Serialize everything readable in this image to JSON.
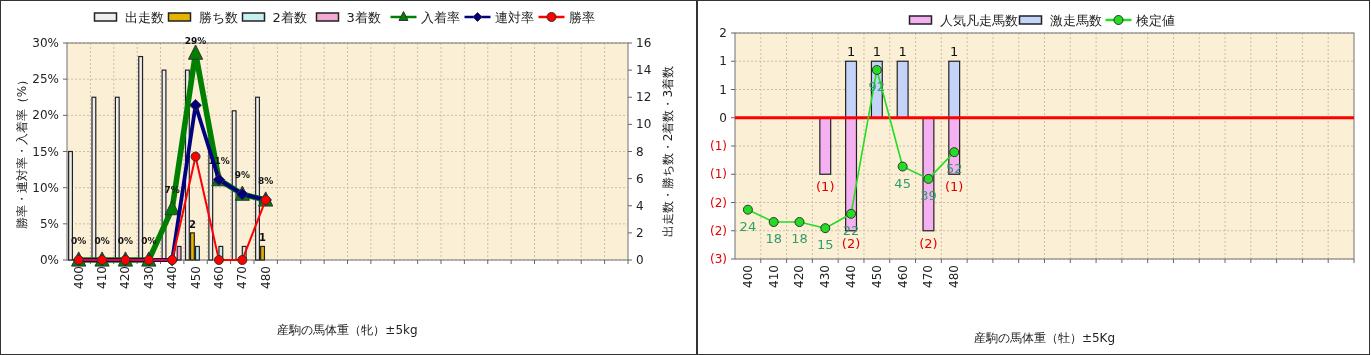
{
  "chart_data": [
    {
      "type": "bar",
      "xlabel": "産駒の馬体重（牝）±5kg",
      "ylabel": "勝率・連対率・入着率（%）",
      "y2label": "出走数・勝ち数・2着数・3着数",
      "grid": true,
      "legend": "top",
      "categories": [
        "400",
        "410",
        "420",
        "430",
        "440",
        "450",
        "460",
        "470",
        "480",
        null,
        null,
        null,
        null,
        null,
        null,
        null,
        null,
        null,
        null,
        null,
        null,
        null,
        null,
        null
      ],
      "ylim": [
        0,
        30
      ],
      "yticks": [
        {
          "value": 0,
          "label": "0%"
        },
        {
          "value": 5,
          "label": "5%"
        },
        {
          "value": 10,
          "label": "10%"
        },
        {
          "value": 15,
          "label": "15%"
        },
        {
          "value": 20,
          "label": "20%"
        },
        {
          "value": 25,
          "label": "25%"
        },
        {
          "value": 30,
          "label": "30%"
        }
      ],
      "y2lim": [
        0,
        16
      ],
      "y2ticks": [
        0,
        2,
        4,
        6,
        8,
        10,
        12,
        14,
        16
      ],
      "series": [
        {
          "name": "出走数",
          "type": "bar",
          "axis": "y2",
          "color": "#eeeeee",
          "values": [
            8,
            12,
            12,
            15,
            14,
            14,
            9,
            11,
            12,
            null,
            null,
            null,
            null,
            null,
            null,
            null,
            null,
            null,
            null,
            null,
            null,
            null,
            null,
            null
          ]
        },
        {
          "name": "勝ち数",
          "type": "bar",
          "axis": "y2",
          "color": "#e6b400",
          "values": [
            0,
            0,
            0,
            0,
            0,
            2,
            0,
            0,
            1,
            null,
            null,
            null,
            null,
            null,
            null,
            null,
            null,
            null,
            null,
            null,
            null,
            null,
            null,
            null
          ],
          "value_labels": [
            null,
            null,
            null,
            null,
            null,
            "2",
            null,
            null,
            "1",
            null,
            null,
            null,
            null,
            null,
            null,
            null,
            null,
            null,
            null,
            null,
            null,
            null,
            null,
            null
          ]
        },
        {
          "name": "2着数",
          "type": "bar",
          "axis": "y2",
          "color": "#c4f0f0",
          "values": [
            0,
            0,
            0,
            0,
            0,
            1,
            1,
            1,
            0,
            null,
            null,
            null,
            null,
            null,
            null,
            null,
            null,
            null,
            null,
            null,
            null,
            null,
            null,
            null
          ]
        },
        {
          "name": "3着数",
          "type": "bar",
          "axis": "y2",
          "color": "#f4a8d4",
          "values": [
            0,
            0,
            0,
            0,
            1,
            0,
            0,
            0,
            0,
            null,
            null,
            null,
            null,
            null,
            null,
            null,
            null,
            null,
            null,
            null,
            null,
            null,
            null,
            null
          ]
        },
        {
          "name": "入着率",
          "type": "line",
          "axis": "y",
          "color": "#008000",
          "marker": "triangle",
          "values": [
            0,
            0,
            0,
            0,
            7.1,
            28.6,
            11.1,
            9.1,
            8.3,
            null,
            null,
            null,
            null,
            null,
            null,
            null,
            null,
            null,
            null,
            null,
            null,
            null,
            null,
            null
          ],
          "value_labels": [
            "0%",
            "0%",
            "0%",
            "0%",
            "7%",
            "29%",
            "11%",
            "9%",
            "8%",
            null,
            null,
            null,
            null,
            null,
            null,
            null,
            null,
            null,
            null,
            null,
            null,
            null,
            null,
            null
          ]
        },
        {
          "name": "連対率",
          "type": "line",
          "axis": "y",
          "color": "#000080",
          "marker": "diamond",
          "values": [
            0,
            0,
            0,
            0,
            0,
            21.4,
            11.1,
            9.1,
            8.3,
            null,
            null,
            null,
            null,
            null,
            null,
            null,
            null,
            null,
            null,
            null,
            null,
            null,
            null,
            null
          ]
        },
        {
          "name": "勝率",
          "type": "line",
          "axis": "y",
          "color": "#ff0000",
          "marker": "circle",
          "values": [
            0,
            0,
            0,
            0,
            0,
            14.3,
            0,
            0,
            8.3,
            null,
            null,
            null,
            null,
            null,
            null,
            null,
            null,
            null,
            null,
            null,
            null,
            null,
            null,
            null
          ]
        }
      ]
    },
    {
      "type": "bar",
      "xlabel": "産駒の馬体重（牡）±5Kg",
      "grid": true,
      "legend": "top",
      "stacked": true,
      "categories": [
        "400",
        "410",
        "420",
        "430",
        "440",
        "450",
        "460",
        "470",
        "480",
        null,
        null,
        null,
        null,
        null,
        null,
        null,
        null,
        null,
        null,
        null,
        null,
        null,
        null,
        null
      ],
      "ylim": [
        -2.5,
        1.5
      ],
      "yticks": [
        {
          "value": -2.5,
          "label": "(3)"
        },
        {
          "value": -2,
          "label": "(2)"
        },
        {
          "value": -1.5,
          "label": "(2)"
        },
        {
          "value": -1,
          "label": "(1)"
        },
        {
          "value": -0.5,
          "label": "(1)"
        },
        0,
        {
          "value": 0.5,
          "label": "1"
        },
        1,
        {
          "value": 1.5,
          "label": "2"
        }
      ],
      "y2lim": [
        0,
        110
      ],
      "ref_lines": [
        {
          "axis": "y",
          "value": 0,
          "color": "#ff0000"
        }
      ],
      "series": [
        {
          "name": "人気凡走馬数",
          "type": "bar",
          "axis": "y",
          "color": "#f4b0f0",
          "values": [
            0,
            0,
            0,
            -1,
            -2,
            0,
            0,
            -2,
            -1,
            null,
            null,
            null,
            null,
            null,
            null,
            null,
            null,
            null,
            null,
            null,
            null,
            null,
            null,
            null
          ],
          "value_labels": [
            null,
            null,
            null,
            "(1)",
            "(2)",
            null,
            null,
            "(2)",
            "(1)",
            null,
            null,
            null,
            null,
            null,
            null,
            null,
            null,
            null,
            null,
            null,
            null,
            null,
            null,
            null
          ]
        },
        {
          "name": "激走馬数",
          "type": "bar",
          "axis": "y",
          "color": "#c4d4f8",
          "values": [
            0,
            0,
            0,
            0,
            1,
            1,
            1,
            0,
            1,
            null,
            null,
            null,
            null,
            null,
            null,
            null,
            null,
            null,
            null,
            null,
            null,
            null,
            null,
            null
          ],
          "value_labels": [
            null,
            null,
            null,
            null,
            "1",
            "1",
            "1",
            null,
            "1",
            null,
            null,
            null,
            null,
            null,
            null,
            null,
            null,
            null,
            null,
            null,
            null,
            null,
            null,
            null
          ]
        },
        {
          "name": "検定値",
          "type": "line",
          "axis": "y2",
          "color": "#22dd22",
          "marker": "circle",
          "values": [
            24,
            18,
            18,
            15,
            22,
            92,
            45,
            39,
            52,
            null,
            null,
            null,
            null,
            null,
            null,
            null,
            null,
            null,
            null,
            null,
            null,
            null,
            null,
            null
          ],
          "value_labels": [
            "24",
            "18",
            "18",
            "15",
            "22",
            "92",
            "45",
            "39",
            "52",
            null,
            null,
            null,
            null,
            null,
            null,
            null,
            null,
            null,
            null,
            null,
            null,
            null,
            null,
            null
          ]
        }
      ]
    }
  ]
}
